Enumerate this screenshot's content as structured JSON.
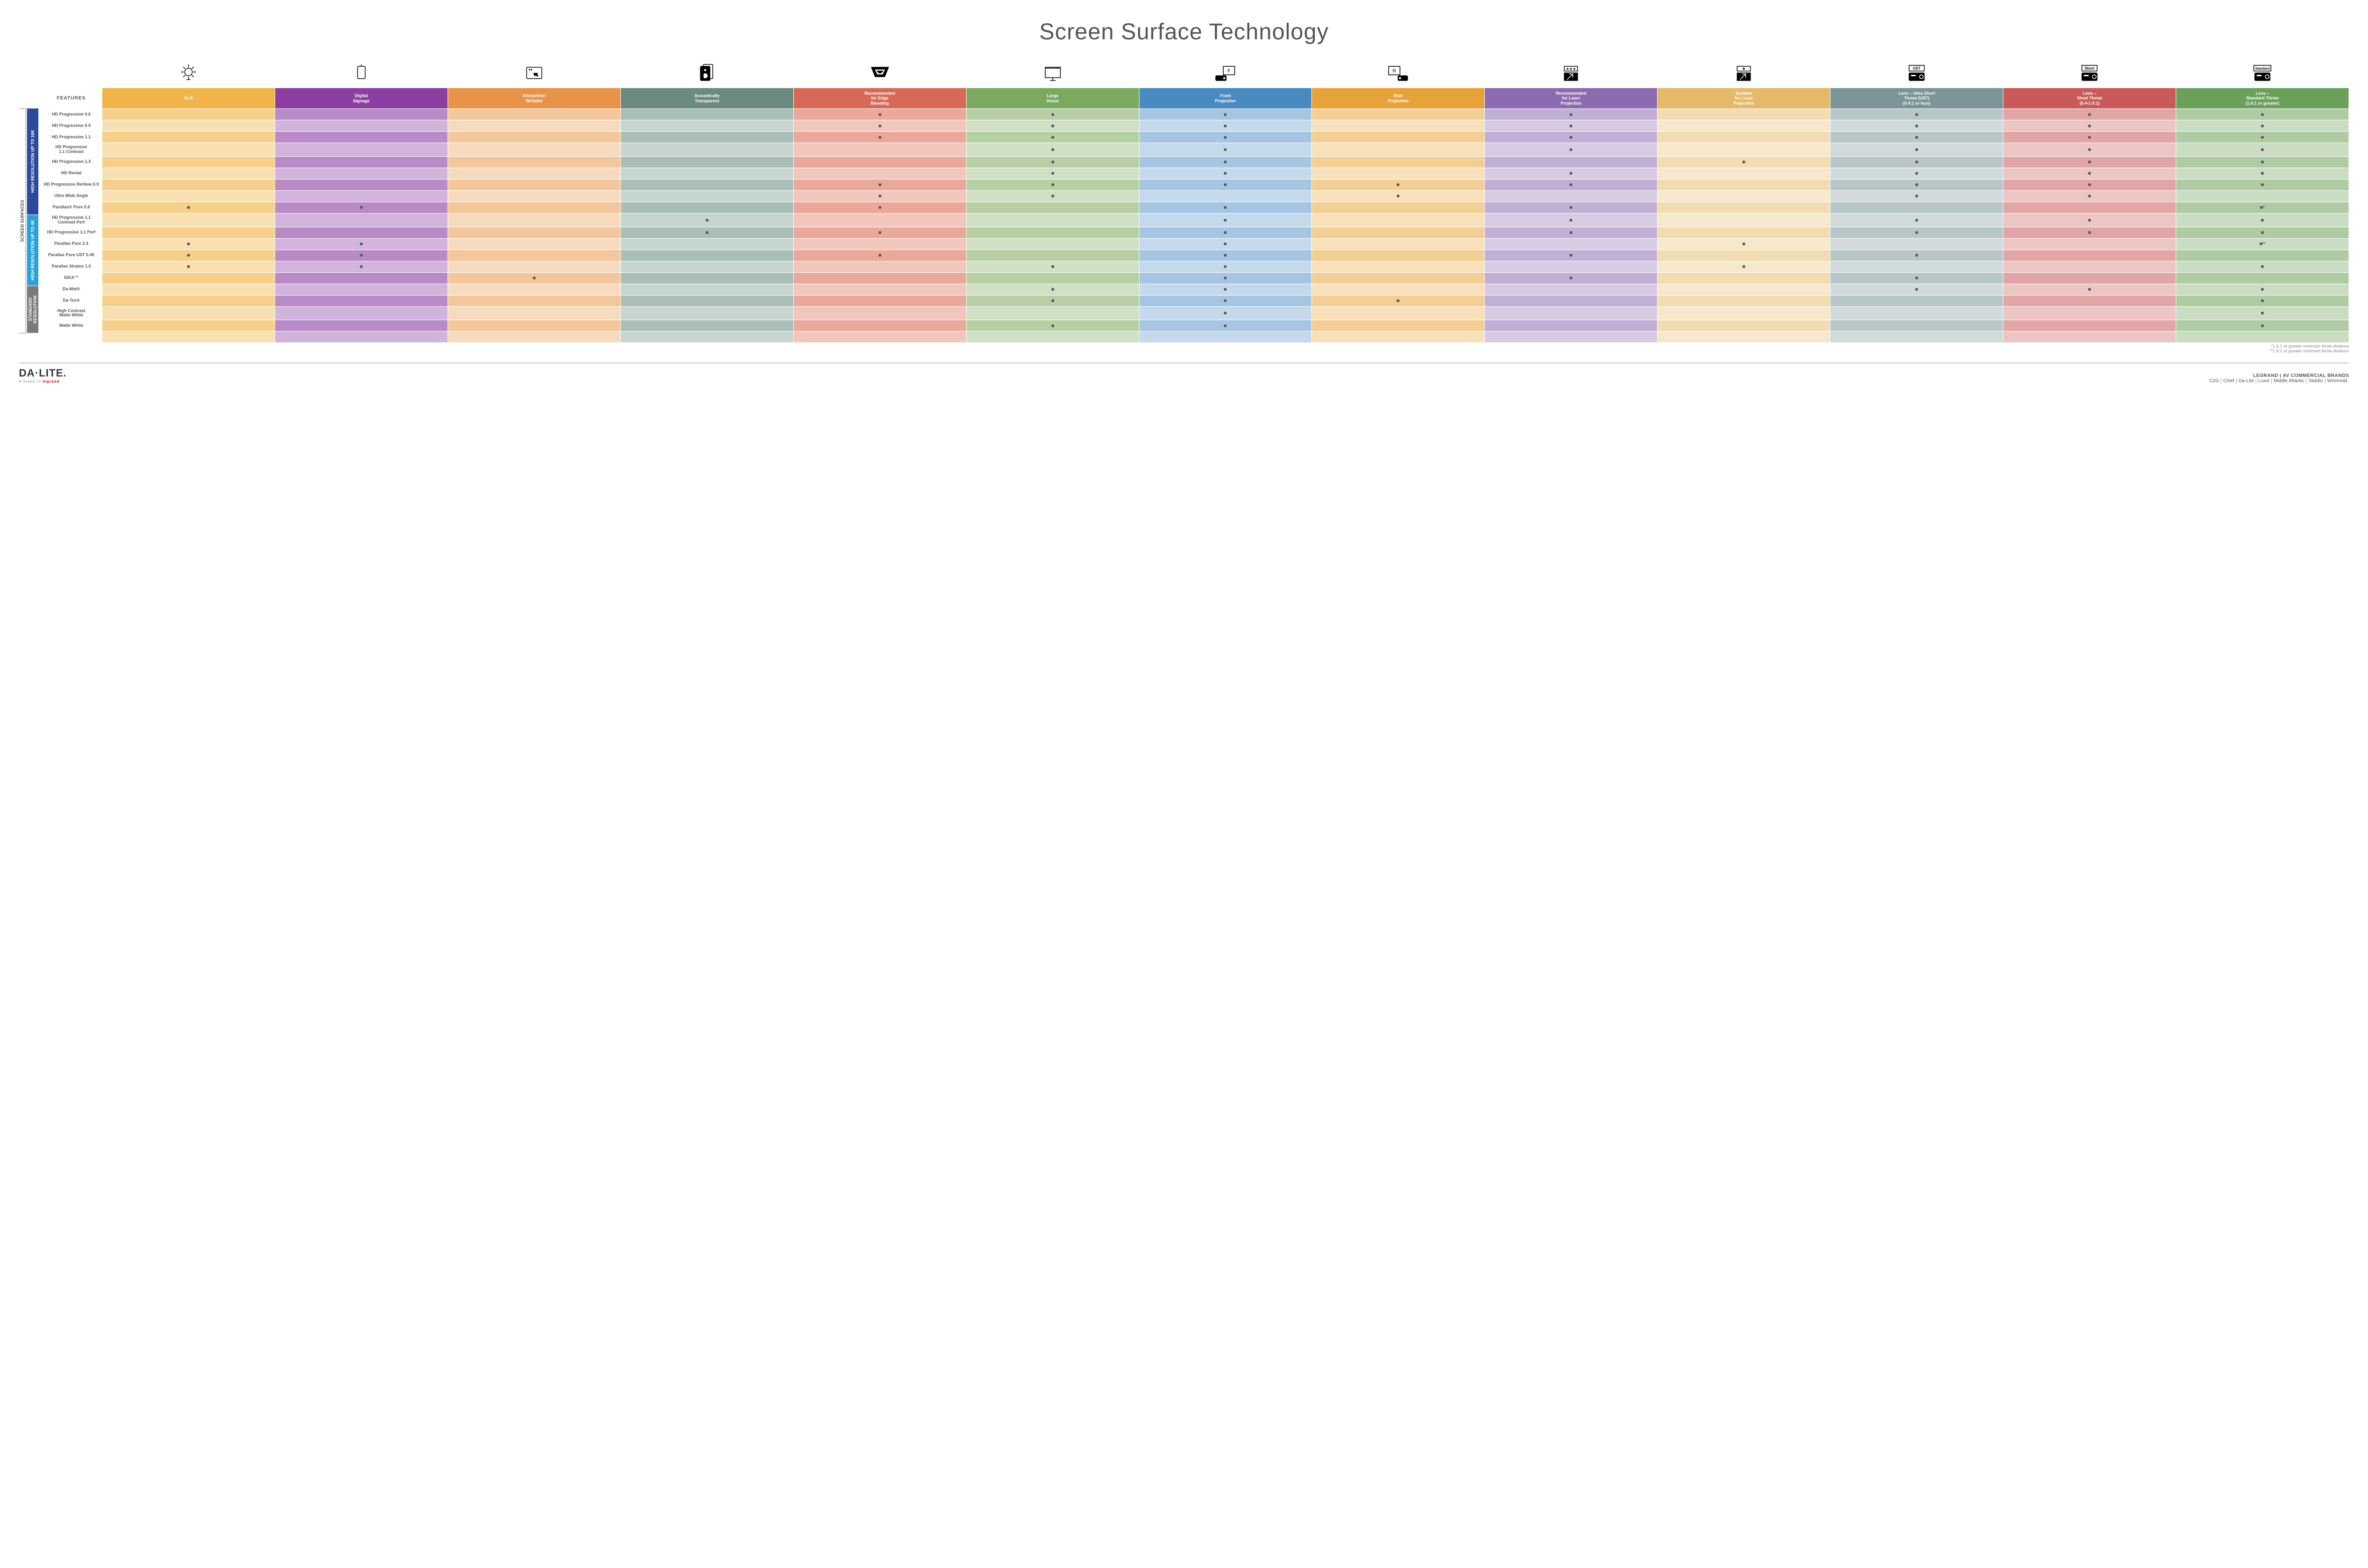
{
  "title": "Screen Surface Technology",
  "features_header": "FEATURES",
  "columns": [
    {
      "key": "alr",
      "label": "ALR",
      "bg": "#f0b44a",
      "alt": "#f6d08a"
    },
    {
      "key": "signage",
      "label": "Digital\nSignage",
      "bg": "#8b3fa0",
      "alt": "#b88ac8"
    },
    {
      "key": "interactive",
      "label": "Interactive/\nWritable",
      "bg": "#e8934a",
      "alt": "#f3c79b"
    },
    {
      "key": "acoustic",
      "label": "Acoustically\nTransparent",
      "bg": "#6a8a82",
      "alt": "#a9beb8"
    },
    {
      "key": "edge",
      "label": "Recommended\nfor Edge\nBlending",
      "bg": "#d66a58",
      "alt": "#e9a89a"
    },
    {
      "key": "large",
      "label": "Large\nVenue",
      "bg": "#7aa95f",
      "alt": "#b6d0a4"
    },
    {
      "key": "front",
      "label": "Front\nProjection",
      "bg": "#4a8ac2",
      "alt": "#a5c5e2"
    },
    {
      "key": "rear",
      "label": "Rear\nProjection",
      "bg": "#e8a23a",
      "alt": "#f3cf95"
    },
    {
      "key": "reclaser",
      "label": "Recommended\nfor Laser\nProjection",
      "bg": "#8d6bb0",
      "alt": "#c2afd6"
    },
    {
      "key": "suitlaser",
      "label": "Suitable\nfor Laser\nProjection",
      "bg": "#e6b86a",
      "alt": "#f2dcb2"
    },
    {
      "key": "ust",
      "label": "Lens – Ultra Short\nThrow (UST)\n(0.4:1 or less)",
      "bg": "#7b9497",
      "alt": "#b8c6c7"
    },
    {
      "key": "short",
      "label": "Lens –\nShort Throw\n(0.4-1.0:1)",
      "bg": "#c85a5a",
      "alt": "#e2a5a5"
    },
    {
      "key": "std",
      "label": "Lens –\nStandard Throw\n(1.0:1 or greater)",
      "bg": "#6ba05b",
      "alt": "#aecba3"
    }
  ],
  "groups_outer_label": "SCREEN SURFACES",
  "groups": [
    {
      "label": "HIGH RESOLUTION UP TO 16K",
      "bg": "#2b4a9b",
      "rows": [
        {
          "name": "HD Progressive 0.6",
          "dots": [
            "edge",
            "large",
            "front",
            "reclaser",
            "ust",
            "short",
            "std"
          ]
        },
        {
          "name": "HD Progressive 0.9",
          "dots": [
            "edge",
            "large",
            "front",
            "reclaser",
            "ust",
            "short",
            "std"
          ]
        },
        {
          "name": "HD Progressive 1.1",
          "dots": [
            "edge",
            "large",
            "front",
            "reclaser",
            "ust",
            "short",
            "std"
          ]
        },
        {
          "name": "HD Progressive\n1.1 Contrast",
          "dots": [
            "large",
            "front",
            "reclaser",
            "ust",
            "short",
            "std"
          ]
        },
        {
          "name": "HD Progressive 1.3",
          "dots": [
            "large",
            "front",
            "suitlaser",
            "ust",
            "short",
            "std"
          ]
        },
        {
          "name": "HD Rental",
          "dots": [
            "large",
            "front",
            "reclaser",
            "ust",
            "short",
            "std"
          ]
        },
        {
          "name": "HD Progressive ReView 0.9",
          "dots": [
            "edge",
            "large",
            "front",
            "rear",
            "reclaser",
            "ust",
            "short",
            "std"
          ]
        },
        {
          "name": "Ultra Wide Angle",
          "dots": [
            "edge",
            "large",
            "rear",
            "ust",
            "short"
          ]
        },
        {
          "name": "Parallax® Pure 0.8",
          "dots": [
            "alr",
            "signage",
            "edge",
            "front",
            "reclaser",
            "std"
          ],
          "suffix": "*"
        }
      ]
    },
    {
      "label": "HIGH RESOLUTION UP TO 4K",
      "bg": "#2aa3d4",
      "rows": [
        {
          "name": "HD Progressive 1.1\nContrast Perf",
          "dots": [
            "acoustic",
            "front",
            "reclaser",
            "ust",
            "short",
            "std"
          ]
        },
        {
          "name": "HD Progressive 1.1 Perf",
          "dots": [
            "acoustic",
            "edge",
            "front",
            "reclaser",
            "ust",
            "short",
            "std"
          ]
        },
        {
          "name": "Parallax Pure 2.3",
          "dots": [
            "alr",
            "signage",
            "front",
            "suitlaser",
            "std"
          ],
          "suffix": "**"
        },
        {
          "name": "Parallax Pure UST 0.45",
          "dots": [
            "alr",
            "signage",
            "edge",
            "front",
            "reclaser",
            "ust"
          ]
        },
        {
          "name": "Parallax Stratos 1.0",
          "dots": [
            "alr",
            "signage",
            "large",
            "front",
            "suitlaser",
            "std"
          ]
        },
        {
          "name": "IDEA™",
          "dots": [
            "interactive",
            "front",
            "reclaser",
            "ust"
          ]
        }
      ]
    },
    {
      "label": "STANDARD\nRESOLUTION",
      "bg": "#7a7a7a",
      "rows": [
        {
          "name": "Da-Mat®",
          "dots": [
            "large",
            "front",
            "ust",
            "short",
            "std"
          ]
        },
        {
          "name": "Da-Tex®",
          "dots": [
            "large",
            "front",
            "rear",
            "std"
          ]
        },
        {
          "name": "High Contrast\nMatte White",
          "dots": [
            "front",
            "std"
          ]
        },
        {
          "name": "Matte White",
          "dots": [
            "large",
            "front",
            "std"
          ]
        }
      ]
    }
  ],
  "footnotes": [
    "*1.5:1 or greater minimum throw distance",
    "**1.8:1 or greater minimum throw distance"
  ],
  "footer": {
    "brand": "DA·LITE.",
    "brand_sub_prefix": "A brand of ",
    "brand_sub_logo": "legrand",
    "right_top": "LEGRAND | AV COMMERCIAL BRANDS",
    "right_list": [
      "C2G",
      "Chief",
      "Da-Lite",
      "Luxul",
      "Middle Atlantic",
      "Vaddio",
      "Wiremold"
    ]
  },
  "icon_labels": [
    "ALR",
    "Signage",
    "Interactive",
    "Acoustic",
    "Edge",
    "Large",
    "Front",
    "Rear",
    "RecLaser",
    "SuitLaser",
    "UST",
    "Short",
    "Standard"
  ]
}
